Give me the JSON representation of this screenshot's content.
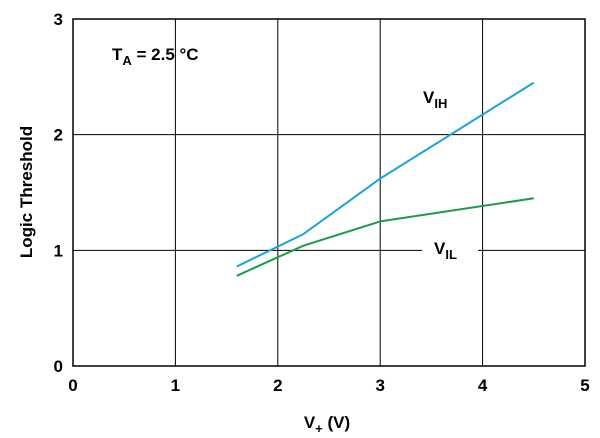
{
  "chart_data": {
    "type": "line",
    "xlabel_main": "V",
    "xlabel_sub": "+",
    "xlabel_unit": " (V)",
    "ylabel": "Logic Threshold",
    "xlim": [
      0,
      5
    ],
    "ylim": [
      0,
      3
    ],
    "x_ticks": [
      "0",
      "1",
      "2",
      "3",
      "4",
      "5"
    ],
    "y_ticks": [
      "0",
      "1",
      "2",
      "3"
    ],
    "grid": true,
    "annotation": {
      "main": "T",
      "sub": "A",
      "rest": " = 2.5 °C"
    },
    "series": [
      {
        "name_main": "V",
        "name_sub": "IH",
        "color": "#1aa3dc",
        "x": [
          1.6,
          2.25,
          3.0,
          4.5
        ],
        "y": [
          0.86,
          1.14,
          1.62,
          2.45
        ]
      },
      {
        "name_main": "V",
        "name_sub": "IL",
        "color": "#1a9c45",
        "x": [
          1.6,
          2.25,
          3.0,
          4.5
        ],
        "y": [
          0.78,
          1.04,
          1.25,
          1.45
        ]
      }
    ]
  }
}
